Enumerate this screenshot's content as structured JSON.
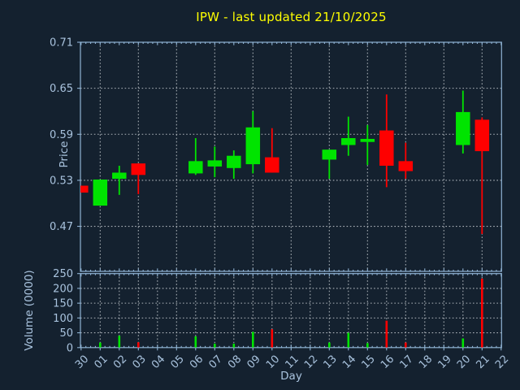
{
  "title": "IPW - last updated 21/10/2025",
  "colors": {
    "background": "#14212f",
    "title": "#ffff00",
    "text": "#a9c3de",
    "axis": "#8fb3d4",
    "grid": "#c7ccd2",
    "up": "#00e400",
    "down": "#fe0000"
  },
  "price_panel": {
    "ylabel": "Price",
    "yticks": [
      0.71,
      0.65,
      0.59,
      0.53,
      0.47
    ]
  },
  "volume_panel": {
    "ylabel": "Volume (0000)",
    "yticks": [
      0,
      50,
      100,
      150,
      200,
      250
    ]
  },
  "x_axis": {
    "label": "Day",
    "days": [
      "30",
      "01",
      "02",
      "03",
      "04",
      "05",
      "06",
      "07",
      "08",
      "09",
      "10",
      "11",
      "12",
      "13",
      "14",
      "15",
      "16",
      "17",
      "18",
      "19",
      "20",
      "21",
      "22"
    ]
  },
  "chart_data": {
    "type": "candlestick",
    "symbol": "IPW",
    "last_updated": "21/10/2025",
    "price_ylim": [
      0.41,
      0.71
    ],
    "volume_ylim": [
      0,
      250
    ],
    "grid": true,
    "legend_position": "none",
    "candles": [
      {
        "day": "30",
        "open": 0.523,
        "high": 0.523,
        "low": 0.514,
        "close": 0.514,
        "volume": 0
      },
      {
        "day": "01",
        "open": 0.497,
        "high": 0.531,
        "low": 0.497,
        "close": 0.531,
        "volume": 17
      },
      {
        "day": "02",
        "open": 0.532,
        "high": 0.549,
        "low": 0.511,
        "close": 0.54,
        "volume": 40
      },
      {
        "day": "03",
        "open": 0.552,
        "high": 0.552,
        "low": 0.512,
        "close": 0.537,
        "volume": 18
      },
      {
        "day": "06",
        "open": 0.539,
        "high": 0.585,
        "low": 0.537,
        "close": 0.555,
        "volume": 38
      },
      {
        "day": "07",
        "open": 0.548,
        "high": 0.574,
        "low": 0.534,
        "close": 0.556,
        "volume": 13
      },
      {
        "day": "08",
        "open": 0.546,
        "high": 0.569,
        "low": 0.532,
        "close": 0.562,
        "volume": 13
      },
      {
        "day": "09",
        "open": 0.551,
        "high": 0.62,
        "low": 0.539,
        "close": 0.599,
        "volume": 53
      },
      {
        "day": "10",
        "open": 0.56,
        "high": 0.598,
        "low": 0.54,
        "close": 0.54,
        "volume": 62
      },
      {
        "day": "13",
        "open": 0.557,
        "high": 0.57,
        "low": 0.532,
        "close": 0.57,
        "volume": 17
      },
      {
        "day": "14",
        "open": 0.576,
        "high": 0.613,
        "low": 0.562,
        "close": 0.585,
        "volume": 50
      },
      {
        "day": "15",
        "open": 0.58,
        "high": 0.602,
        "low": 0.55,
        "close": 0.584,
        "volume": 15
      },
      {
        "day": "16",
        "open": 0.595,
        "high": 0.642,
        "low": 0.521,
        "close": 0.549,
        "volume": 91
      },
      {
        "day": "17",
        "open": 0.555,
        "high": 0.579,
        "low": 0.532,
        "close": 0.542,
        "volume": 17
      },
      {
        "day": "20",
        "open": 0.576,
        "high": 0.647,
        "low": 0.565,
        "close": 0.619,
        "volume": 31
      },
      {
        "day": "21",
        "open": 0.609,
        "high": 0.612,
        "low": 0.46,
        "close": 0.568,
        "volume": 233
      }
    ]
  }
}
